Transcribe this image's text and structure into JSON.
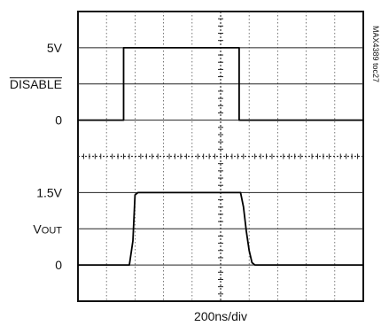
{
  "chart_data": {
    "type": "line",
    "side_label": "MAX4389 toc27",
    "xlabel": "200ns/div",
    "x_divisions": 10,
    "y_divisions": 8,
    "x_unit_per_div_ns": 200,
    "grid": true,
    "series": [
      {
        "name": "DISABLE",
        "labels": [
          {
            "text": "5V",
            "overline": false,
            "sub": ""
          },
          {
            "text": "DISABLE",
            "overline": true,
            "sub": ""
          },
          {
            "text": "0",
            "overline": false,
            "sub": ""
          }
        ],
        "x": [
          0,
          320,
          320,
          1130,
          1130,
          2000
        ],
        "y": [
          0,
          0,
          5,
          5,
          0,
          0
        ]
      },
      {
        "name": "VOUT",
        "labels": [
          {
            "text": "1.5V",
            "overline": false,
            "sub": ""
          },
          {
            "text": "V",
            "overline": false,
            "sub": "OUT"
          },
          {
            "text": "0",
            "overline": false,
            "sub": ""
          }
        ],
        "x": [
          0,
          360,
          385,
          400,
          420,
          1000,
          1140,
          1160,
          1180,
          1200,
          1220,
          1240,
          2000
        ],
        "y": [
          0,
          0,
          0.5,
          1.45,
          1.5,
          1.5,
          1.5,
          1.2,
          0.7,
          0.3,
          0.05,
          0,
          0
        ]
      }
    ]
  }
}
